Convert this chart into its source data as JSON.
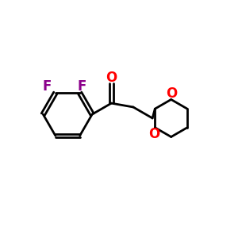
{
  "background_color": "#ffffff",
  "line_color": "#000000",
  "bond_width": 2.0,
  "F_color": "#8B008B",
  "O_color": "#FF0000",
  "font_size": 12,
  "fig_size": [
    3.0,
    3.0
  ],
  "dpi": 100,
  "xlim": [
    0,
    10
  ],
  "ylim": [
    0,
    10
  ]
}
